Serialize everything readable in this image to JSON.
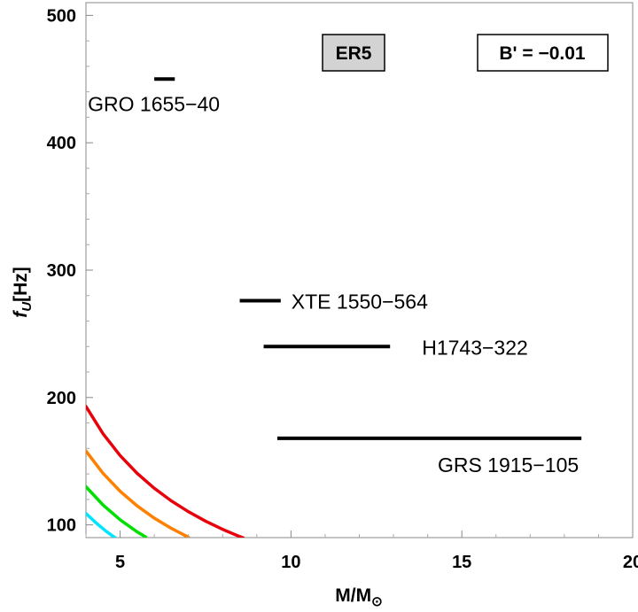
{
  "chart_data": {
    "type": "line",
    "xlabel": "M/M",
    "xlabel_sub": "⊙",
    "ylabel": "f",
    "ylabel_sub": "U",
    "ylabel_unit": "[Hz]",
    "xlim": [
      4,
      20
    ],
    "ylim": [
      90,
      510
    ],
    "xticks": [
      5,
      10,
      15,
      20
    ],
    "yticks": [
      100,
      200,
      300,
      400,
      500
    ],
    "grid": false,
    "annotations": {
      "model_label": "ER5",
      "parameter_label": "B' = −0.01"
    },
    "observations": [
      {
        "name": "GRO 1655−40",
        "x_range": [
          6.0,
          6.6
        ],
        "y": 450
      },
      {
        "name": "XTE 1550−564",
        "x_range": [
          8.5,
          9.7
        ],
        "y": 276
      },
      {
        "name": "H1743−322",
        "x_range": [
          9.2,
          12.9
        ],
        "y": 240
      },
      {
        "name": "GRS 1915−105",
        "x_range": [
          9.6,
          18.5
        ],
        "y": 168
      }
    ],
    "series": [
      {
        "color": "#e8000b",
        "x": [
          4.0,
          4.5,
          5.0,
          5.5,
          6.0,
          6.5,
          7.0,
          7.5,
          8.0,
          8.5,
          8.6
        ],
        "y": [
          193,
          171.5,
          154.4,
          140.4,
          128.7,
          118.8,
          110.3,
          102.9,
          96.5,
          90.8,
          89.8
        ]
      },
      {
        "color": "#ff8000",
        "x": [
          4.0,
          4.5,
          5.0,
          5.5,
          6.0,
          6.5,
          7.0
        ],
        "y": [
          158,
          140.4,
          126.4,
          114.9,
          105.3,
          97.2,
          90.3
        ]
      },
      {
        "color": "#00e000",
        "x": [
          4.0,
          4.5,
          5.0,
          5.5,
          5.75
        ],
        "y": [
          130,
          115.6,
          104,
          94.5,
          90.4
        ]
      },
      {
        "color": "#00e5ff",
        "x": [
          4.0,
          4.3,
          4.6,
          4.85
        ],
        "y": [
          109,
          101.4,
          94.8,
          89.9
        ]
      }
    ]
  }
}
